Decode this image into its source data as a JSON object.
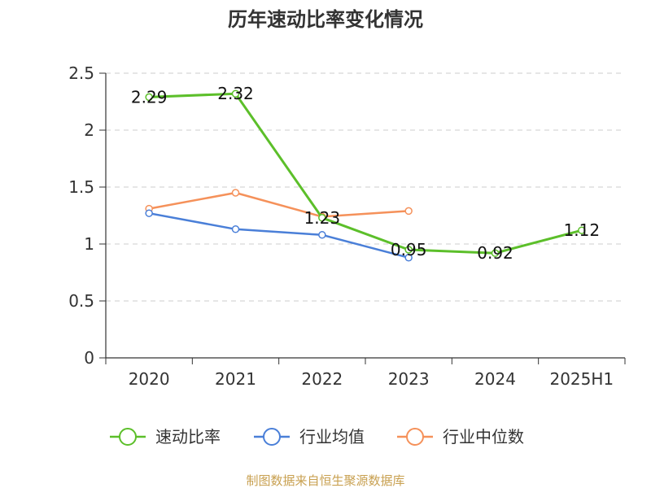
{
  "chart_data": {
    "type": "line",
    "title": "历年速动比率变化情况",
    "categories": [
      "2020",
      "2021",
      "2022",
      "2023",
      "2024",
      "2025H1"
    ],
    "ylim": [
      0,
      2.5
    ],
    "yticks": [
      "0",
      "0.5",
      "1",
      "1.5",
      "2",
      "2.5"
    ],
    "grid": true,
    "legend_position": "bottom",
    "series": [
      {
        "name": "速动比率",
        "color": "#5cbf2a",
        "values": [
          2.29,
          2.32,
          1.23,
          0.95,
          0.92,
          1.12
        ],
        "labels": [
          "2.29",
          "2.32",
          "1.23",
          "0.95",
          "0.92",
          "1.12"
        ]
      },
      {
        "name": "行业均值",
        "color": "#4a7fd8",
        "values": [
          1.27,
          1.13,
          1.08,
          0.88,
          null,
          null
        ]
      },
      {
        "name": "行业中位数",
        "color": "#f5915a",
        "values": [
          1.31,
          1.45,
          1.24,
          1.29,
          null,
          null
        ]
      }
    ]
  },
  "source": "制图数据来自恒生聚源数据库"
}
